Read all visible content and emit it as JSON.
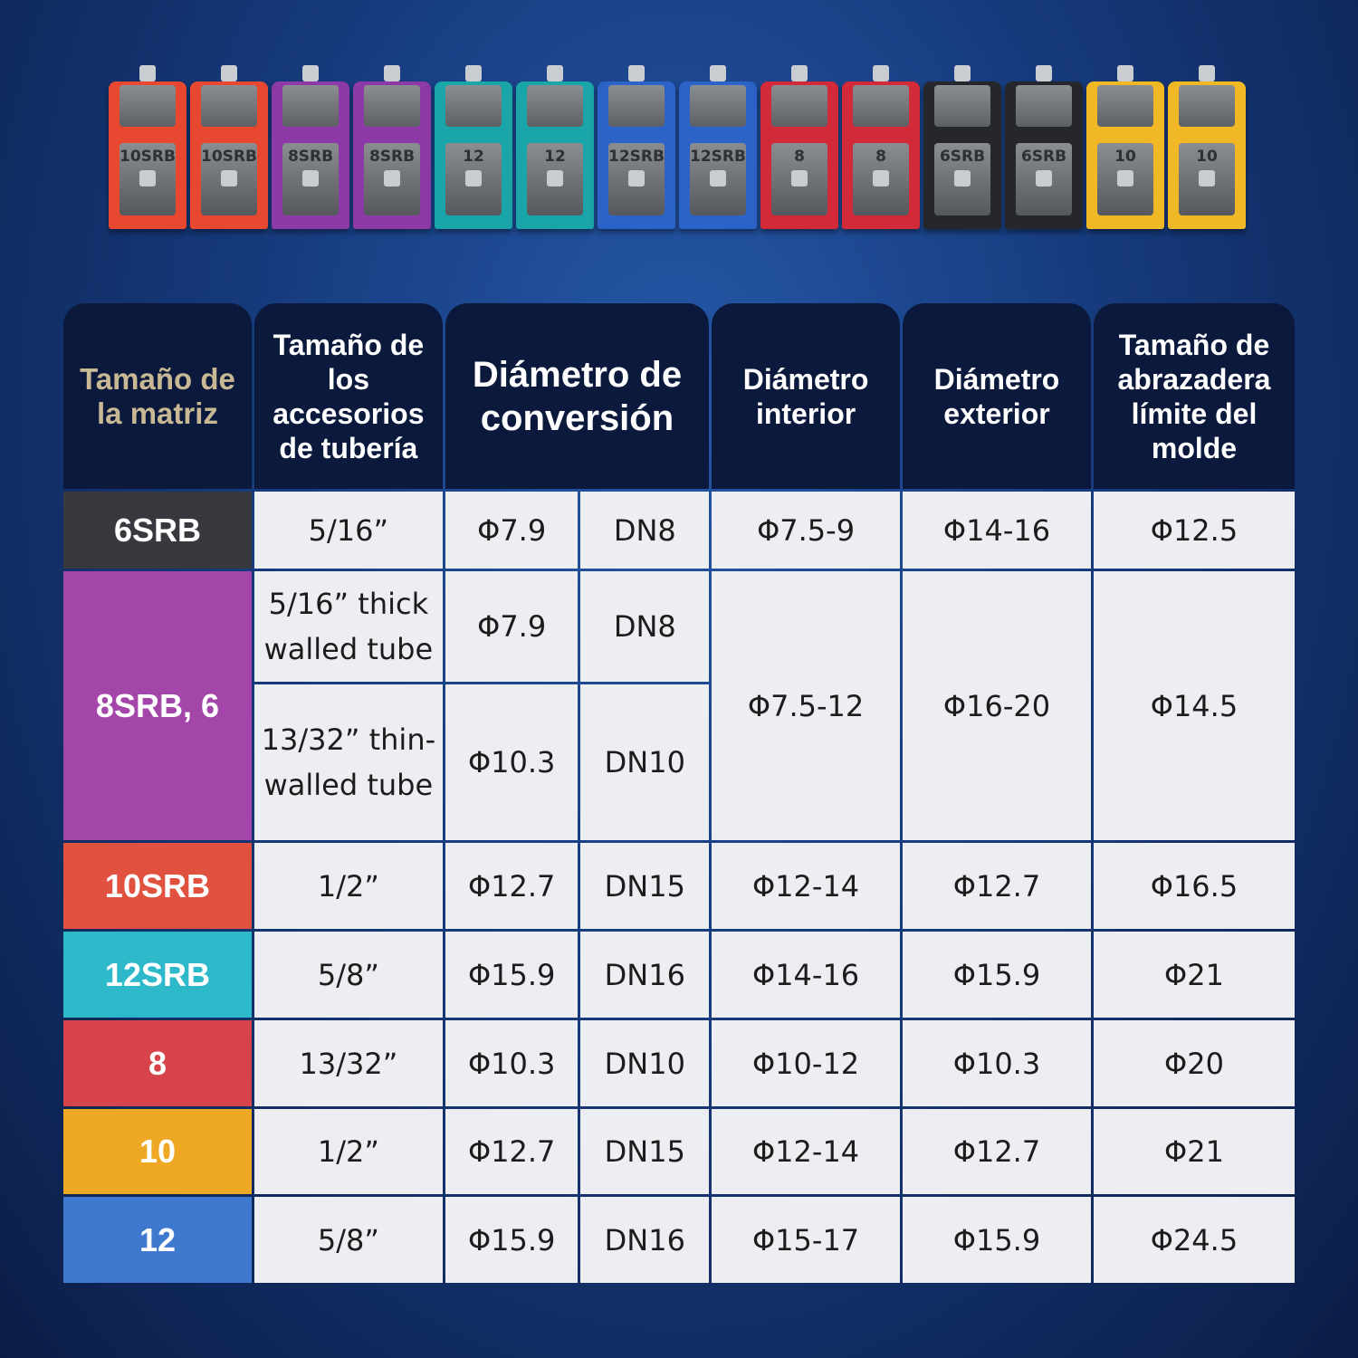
{
  "dies": [
    {
      "label": "10SRB",
      "color": "#e8482f"
    },
    {
      "label": "10SRB",
      "color": "#e8482f"
    },
    {
      "label": "8SRB",
      "color": "#8e3aa6"
    },
    {
      "label": "8SRB",
      "color": "#8e3aa6"
    },
    {
      "label": "12",
      "color": "#1aa5a8"
    },
    {
      "label": "12",
      "color": "#1aa5a8"
    },
    {
      "label": "12SRB",
      "color": "#2c63c8"
    },
    {
      "label": "12SRB",
      "color": "#2c63c8"
    },
    {
      "label": "8",
      "color": "#d32a3a"
    },
    {
      "label": "8",
      "color": "#d32a3a"
    },
    {
      "label": "6SRB",
      "color": "#26272c"
    },
    {
      "label": "6SRB",
      "color": "#26272c"
    },
    {
      "label": "10",
      "color": "#f1b826"
    },
    {
      "label": "10",
      "color": "#f1b826"
    }
  ],
  "table": {
    "header": [
      "Tamaño de la matriz",
      "Tamaño de los accesorios de tubería",
      "Diámetro de conversión",
      "Diámetro interior",
      "Diámetro exterior",
      "Tamaño de abrazadera límite del molde"
    ],
    "rows": [
      [
        "6SRB",
        "5/16”",
        "Φ7.9",
        "DN8",
        "Φ7.5-9",
        "Φ14-16",
        "Φ12.5"
      ],
      [
        "8SRB, 6",
        "5/16” thick walled tube",
        "Φ7.9",
        "DN8",
        "Φ7.5-12",
        "Φ16-20",
        "Φ14.5"
      ],
      [
        "13/32” thin-walled tube",
        "Φ10.3",
        "DN10"
      ],
      [
        "10SRB",
        "1/2”",
        "Φ12.7",
        "DN15",
        "Φ12-14",
        "Φ12.7",
        "Φ16.5"
      ],
      [
        "12SRB",
        "5/8”",
        "Φ15.9",
        "DN16",
        "Φ14-16",
        "Φ15.9",
        "Φ21"
      ],
      [
        "8",
        "13/32”",
        "Φ10.3",
        "DN10",
        "Φ10-12",
        "Φ10.3",
        "Φ20"
      ],
      [
        "10",
        "1/2”",
        "Φ12.7",
        "DN15",
        "Φ12-14",
        "Φ12.7",
        "Φ21"
      ],
      [
        "12",
        "5/8”",
        "Φ15.9",
        "DN16",
        "Φ15-17",
        "Φ15.9",
        "Φ24.5"
      ]
    ]
  }
}
